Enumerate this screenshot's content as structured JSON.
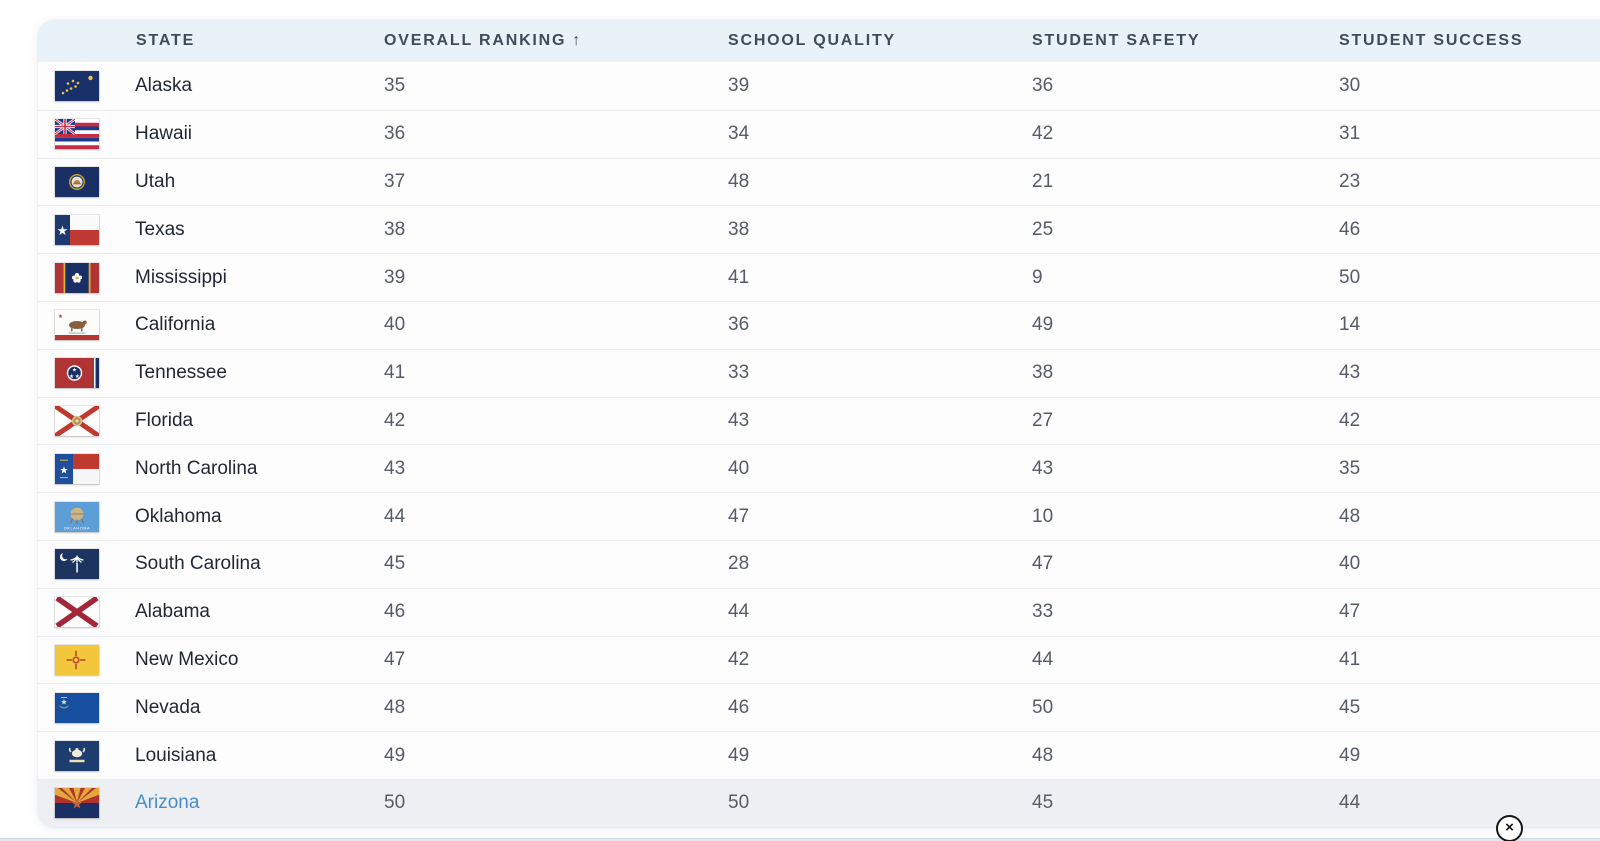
{
  "table": {
    "columns": [
      {
        "id": "state",
        "label": "STATE"
      },
      {
        "id": "overall_ranking",
        "label": "OVERALL RANKING",
        "sort_arrow": "↑"
      },
      {
        "id": "school_quality",
        "label": "SCHOOL QUALITY"
      },
      {
        "id": "student_safety",
        "label": "STUDENT SAFETY"
      },
      {
        "id": "student_success",
        "label": "STUDENT SUCCESS"
      }
    ],
    "rows": [
      {
        "state": "Alaska",
        "flag": "alaska",
        "overall_ranking": "35",
        "school_quality": "39",
        "student_safety": "36",
        "student_success": "30",
        "highlighted": false,
        "is_link": false
      },
      {
        "state": "Hawaii",
        "flag": "hawaii",
        "overall_ranking": "36",
        "school_quality": "34",
        "student_safety": "42",
        "student_success": "31",
        "highlighted": false,
        "is_link": false
      },
      {
        "state": "Utah",
        "flag": "utah",
        "overall_ranking": "37",
        "school_quality": "48",
        "student_safety": "21",
        "student_success": "23",
        "highlighted": false,
        "is_link": false
      },
      {
        "state": "Texas",
        "flag": "texas",
        "overall_ranking": "38",
        "school_quality": "38",
        "student_safety": "25",
        "student_success": "46",
        "highlighted": false,
        "is_link": false
      },
      {
        "state": "Mississippi",
        "flag": "mississippi",
        "overall_ranking": "39",
        "school_quality": "41",
        "student_safety": "9",
        "student_success": "50",
        "highlighted": false,
        "is_link": false
      },
      {
        "state": "California",
        "flag": "california",
        "overall_ranking": "40",
        "school_quality": "36",
        "student_safety": "49",
        "student_success": "14",
        "highlighted": false,
        "is_link": false
      },
      {
        "state": "Tennessee",
        "flag": "tennessee",
        "overall_ranking": "41",
        "school_quality": "33",
        "student_safety": "38",
        "student_success": "43",
        "highlighted": false,
        "is_link": false
      },
      {
        "state": "Florida",
        "flag": "florida",
        "overall_ranking": "42",
        "school_quality": "43",
        "student_safety": "27",
        "student_success": "42",
        "highlighted": false,
        "is_link": false
      },
      {
        "state": "North Carolina",
        "flag": "north-carolina",
        "overall_ranking": "43",
        "school_quality": "40",
        "student_safety": "43",
        "student_success": "35",
        "highlighted": false,
        "is_link": false
      },
      {
        "state": "Oklahoma",
        "flag": "oklahoma",
        "overall_ranking": "44",
        "school_quality": "47",
        "student_safety": "10",
        "student_success": "48",
        "highlighted": false,
        "is_link": false
      },
      {
        "state": "South Carolina",
        "flag": "south-carolina",
        "overall_ranking": "45",
        "school_quality": "28",
        "student_safety": "47",
        "student_success": "40",
        "highlighted": false,
        "is_link": false
      },
      {
        "state": "Alabama",
        "flag": "alabama",
        "overall_ranking": "46",
        "school_quality": "44",
        "student_safety": "33",
        "student_success": "47",
        "highlighted": false,
        "is_link": false
      },
      {
        "state": "New Mexico",
        "flag": "new-mexico",
        "overall_ranking": "47",
        "school_quality": "42",
        "student_safety": "44",
        "student_success": "41",
        "highlighted": false,
        "is_link": false
      },
      {
        "state": "Nevada",
        "flag": "nevada",
        "overall_ranking": "48",
        "school_quality": "46",
        "student_safety": "50",
        "student_success": "45",
        "highlighted": false,
        "is_link": false
      },
      {
        "state": "Louisiana",
        "flag": "louisiana",
        "overall_ranking": "49",
        "school_quality": "49",
        "student_safety": "48",
        "student_success": "49",
        "highlighted": false,
        "is_link": false
      },
      {
        "state": "Arizona",
        "flag": "arizona",
        "overall_ranking": "50",
        "school_quality": "50",
        "student_safety": "45",
        "student_success": "44",
        "highlighted": true,
        "is_link": true
      }
    ]
  },
  "close_button": {
    "glyph": "×"
  },
  "colors": {
    "header_bg": "#e9f2f9",
    "header_text": "#3e4c59",
    "row_divider": "#e9ebee",
    "state_text": "#1f2733",
    "value_text": "#565c66",
    "link_blue": "#4a8cc7",
    "highlight_row_bg": "#edeff3"
  }
}
